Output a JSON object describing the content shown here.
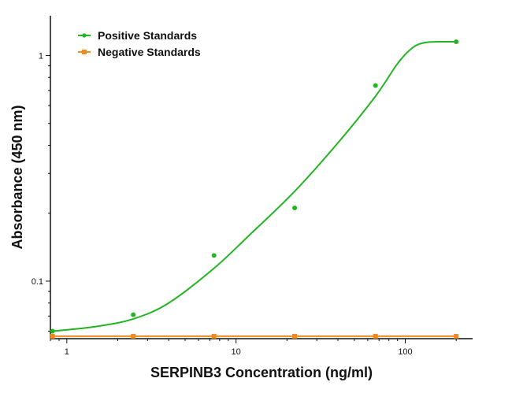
{
  "chart_data": {
    "type": "line",
    "title": "",
    "xlabel": "SERPINB3 Concentration (ng/ml)",
    "ylabel": "Absorbance (450 nm)",
    "xscale": "log",
    "yscale": "log",
    "xlim": [
      0.8,
      250
    ],
    "ylim": [
      0.0556,
      1.5
    ],
    "x_ticks": [
      1,
      10,
      100
    ],
    "x_tick_labels": [
      "1",
      "10",
      "100"
    ],
    "y_ticks": [
      0.1,
      1
    ],
    "y_tick_labels": [
      "0.1",
      "1"
    ],
    "grid": false,
    "legend": "top-left",
    "series": [
      {
        "name": "Positive Standards",
        "color": "#22b422",
        "marker": "circle",
        "x": [
          0.823,
          2.47,
          7.41,
          22.2,
          66.7,
          200
        ],
        "y": [
          0.06,
          0.071,
          0.13,
          0.211,
          0.736,
          1.15
        ],
        "fit_curve": {
          "x": [
            0.823,
            1.5,
            2.47,
            4,
            7.41,
            12,
            22.2,
            40,
            66.7,
            90,
            110,
            130,
            160,
            200
          ],
          "y": [
            0.06,
            0.063,
            0.068,
            0.08,
            0.114,
            0.16,
            0.25,
            0.41,
            0.66,
            0.92,
            1.08,
            1.14,
            1.15,
            1.15
          ]
        }
      },
      {
        "name": "Negative Standards",
        "color": "#f28a1e",
        "marker": "square",
        "x": [
          0.823,
          2.47,
          7.41,
          22.2,
          66.7,
          200
        ],
        "y": [
          0.057,
          0.057,
          0.057,
          0.057,
          0.057,
          0.057
        ]
      }
    ]
  }
}
